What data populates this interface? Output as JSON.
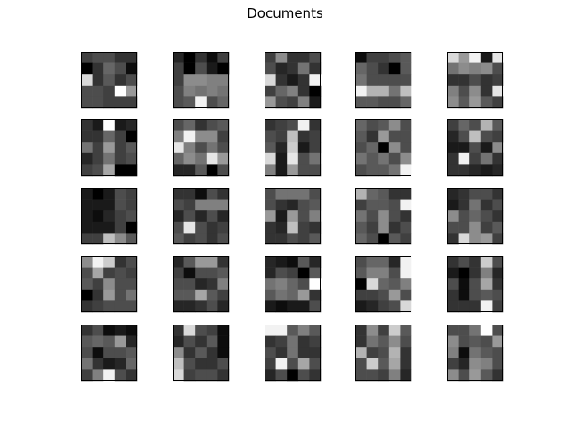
{
  "chart_data": {
    "type": "heatmap",
    "title": "Documents",
    "subplot_rows": 5,
    "subplot_cols": 5,
    "colormap": "gray",
    "value_range": [
      0,
      1
    ],
    "axes_visible": false,
    "frame_color": "#000000",
    "panels": [
      {
        "values": [
          [
            0.25,
            0.3,
            0.3,
            0.2,
            0.2
          ],
          [
            0.0,
            0.2,
            0.4,
            0.3,
            0.05
          ],
          [
            0.85,
            0.2,
            0.35,
            0.2,
            0.3
          ],
          [
            0.3,
            0.3,
            0.25,
            1.0,
            0.6
          ],
          [
            0.3,
            0.3,
            0.25,
            0.25,
            0.25
          ]
        ]
      },
      {
        "values": [
          [
            0.15,
            0.0,
            0.2,
            0.05,
            0.25
          ],
          [
            0.25,
            0.0,
            0.3,
            0.1,
            0.0
          ],
          [
            0.25,
            0.55,
            0.55,
            0.5,
            0.5
          ],
          [
            0.3,
            0.5,
            0.45,
            0.5,
            0.45
          ],
          [
            0.3,
            0.35,
            0.95,
            0.3,
            0.4
          ]
        ]
      },
      {
        "values": [
          [
            0.25,
            0.55,
            0.2,
            0.2,
            0.3
          ],
          [
            0.3,
            0.15,
            0.2,
            0.45,
            0.2
          ],
          [
            0.85,
            0.2,
            0.1,
            0.2,
            0.95
          ],
          [
            0.25,
            0.4,
            0.5,
            0.2,
            0.0
          ],
          [
            0.6,
            0.3,
            0.25,
            0.5,
            0.1
          ]
        ]
      },
      {
        "values": [
          [
            0.05,
            0.25,
            0.25,
            0.3,
            0.35
          ],
          [
            0.4,
            0.3,
            0.2,
            0.0,
            0.35
          ],
          [
            0.45,
            0.3,
            0.3,
            0.3,
            0.3
          ],
          [
            0.95,
            0.7,
            0.7,
            0.45,
            0.75
          ],
          [
            0.35,
            0.35,
            0.3,
            0.3,
            0.4
          ]
        ]
      },
      {
        "values": [
          [
            0.85,
            0.6,
            0.95,
            0.1,
            0.9
          ],
          [
            0.45,
            0.55,
            0.5,
            0.55,
            0.3
          ],
          [
            0.2,
            0.2,
            0.3,
            0.2,
            0.25
          ],
          [
            0.5,
            0.3,
            0.55,
            0.2,
            0.9
          ],
          [
            0.55,
            0.35,
            0.6,
            0.35,
            0.25
          ]
        ]
      },
      {
        "values": [
          [
            0.2,
            0.1,
            1.0,
            0.1,
            0.15
          ],
          [
            0.2,
            0.2,
            0.4,
            0.25,
            0.0
          ],
          [
            0.45,
            0.25,
            0.6,
            0.25,
            0.35
          ],
          [
            0.15,
            0.25,
            0.45,
            0.25,
            0.3
          ],
          [
            0.25,
            0.3,
            0.65,
            0.0,
            0.0
          ]
        ]
      },
      {
        "values": [
          [
            0.3,
            0.4,
            0.2,
            0.3,
            0.35
          ],
          [
            0.5,
            0.95,
            0.55,
            0.55,
            0.25
          ],
          [
            0.9,
            0.5,
            0.3,
            0.45,
            0.3
          ],
          [
            0.4,
            0.55,
            0.45,
            0.9,
            0.6
          ],
          [
            0.15,
            0.15,
            0.35,
            0.0,
            0.3
          ]
        ]
      },
      {
        "values": [
          [
            0.2,
            0.25,
            0.3,
            0.95,
            0.2
          ],
          [
            0.3,
            0.25,
            0.75,
            0.2,
            0.25
          ],
          [
            0.35,
            0.15,
            0.8,
            0.1,
            0.25
          ],
          [
            0.85,
            0.1,
            0.9,
            0.3,
            0.45
          ],
          [
            0.5,
            0.1,
            0.6,
            0.3,
            0.3
          ]
        ]
      },
      {
        "values": [
          [
            0.4,
            0.3,
            0.35,
            0.55,
            0.3
          ],
          [
            0.35,
            0.2,
            0.6,
            0.3,
            0.3
          ],
          [
            0.3,
            0.4,
            0.0,
            0.55,
            0.3
          ],
          [
            0.45,
            0.35,
            0.45,
            0.3,
            0.55
          ],
          [
            0.3,
            0.35,
            0.35,
            0.45,
            0.95
          ]
        ]
      },
      {
        "values": [
          [
            0.25,
            0.4,
            0.3,
            0.7,
            0.35
          ],
          [
            0.15,
            0.3,
            0.75,
            0.3,
            0.25
          ],
          [
            0.1,
            0.1,
            0.3,
            0.1,
            0.55
          ],
          [
            0.2,
            0.95,
            0.25,
            0.45,
            0.2
          ],
          [
            0.2,
            0.2,
            0.15,
            0.1,
            0.15
          ]
        ]
      },
      {
        "values": [
          [
            0.1,
            0.0,
            0.1,
            0.3,
            0.25
          ],
          [
            0.1,
            0.1,
            0.1,
            0.3,
            0.25
          ],
          [
            0.1,
            0.05,
            0.15,
            0.25,
            0.3
          ],
          [
            0.1,
            0.1,
            0.1,
            0.25,
            0.0
          ],
          [
            0.25,
            0.25,
            0.75,
            0.55,
            0.35
          ]
        ]
      },
      {
        "values": [
          [
            0.2,
            0.2,
            0.05,
            0.3,
            0.2
          ],
          [
            0.3,
            0.25,
            0.5,
            0.5,
            0.5
          ],
          [
            0.15,
            0.3,
            0.15,
            0.3,
            0.15
          ],
          [
            0.3,
            0.9,
            0.3,
            0.2,
            0.25
          ],
          [
            0.35,
            0.25,
            0.3,
            0.2,
            0.3
          ]
        ]
      },
      {
        "values": [
          [
            0.3,
            0.45,
            0.45,
            0.45,
            0.3
          ],
          [
            0.3,
            0.2,
            0.15,
            0.3,
            0.35
          ],
          [
            0.6,
            0.1,
            0.6,
            0.3,
            0.5
          ],
          [
            0.2,
            0.15,
            0.75,
            0.25,
            0.2
          ],
          [
            0.2,
            0.2,
            0.3,
            0.25,
            0.35
          ]
        ]
      },
      {
        "values": [
          [
            0.7,
            0.4,
            0.35,
            0.2,
            0.2
          ],
          [
            0.25,
            0.35,
            0.35,
            0.3,
            0.95
          ],
          [
            0.45,
            0.3,
            0.55,
            0.3,
            0.2
          ],
          [
            0.35,
            0.25,
            0.55,
            0.2,
            0.3
          ],
          [
            0.4,
            0.3,
            0.0,
            0.35,
            0.25
          ]
        ]
      },
      {
        "values": [
          [
            0.15,
            0.2,
            0.3,
            0.3,
            0.2
          ],
          [
            0.1,
            0.2,
            0.45,
            0.2,
            0.3
          ],
          [
            0.55,
            0.3,
            0.4,
            0.3,
            0.2
          ],
          [
            0.3,
            0.3,
            0.55,
            0.25,
            0.35
          ],
          [
            0.2,
            0.85,
            0.55,
            0.6,
            0.25
          ]
        ]
      },
      {
        "values": [
          [
            0.55,
            0.95,
            0.8,
            0.2,
            0.3
          ],
          [
            0.3,
            0.65,
            0.25,
            0.3,
            0.25
          ],
          [
            0.35,
            0.25,
            0.55,
            0.3,
            0.3
          ],
          [
            0.0,
            0.2,
            0.6,
            0.3,
            0.45
          ],
          [
            0.2,
            0.25,
            0.3,
            0.3,
            0.3
          ]
        ]
      },
      {
        "values": [
          [
            0.15,
            0.35,
            0.6,
            0.6,
            0.2
          ],
          [
            0.25,
            0.05,
            0.3,
            0.3,
            0.35
          ],
          [
            0.3,
            0.3,
            0.15,
            0.2,
            0.5
          ],
          [
            0.35,
            0.35,
            0.65,
            0.35,
            0.25
          ],
          [
            0.15,
            0.15,
            0.2,
            0.3,
            0.15
          ]
        ]
      },
      {
        "values": [
          [
            0.15,
            0.1,
            0.05,
            0.35,
            0.15
          ],
          [
            0.15,
            0.3,
            0.25,
            0.0,
            0.35
          ],
          [
            0.45,
            0.5,
            0.4,
            0.3,
            1.0
          ],
          [
            0.35,
            0.45,
            0.4,
            0.6,
            0.2
          ],
          [
            0.1,
            0.05,
            0.1,
            0.1,
            0.3
          ]
        ]
      },
      {
        "values": [
          [
            0.3,
            0.4,
            0.4,
            0.15,
            0.95
          ],
          [
            0.35,
            0.5,
            0.5,
            0.3,
            0.95
          ],
          [
            0.0,
            0.85,
            0.4,
            0.35,
            0.5
          ],
          [
            0.25,
            0.25,
            0.3,
            0.6,
            0.3
          ],
          [
            0.1,
            0.15,
            0.25,
            0.3,
            0.85
          ]
        ]
      },
      {
        "values": [
          [
            0.2,
            0.3,
            0.2,
            0.8,
            0.3
          ],
          [
            0.1,
            0.0,
            0.2,
            0.5,
            0.15
          ],
          [
            0.3,
            0.05,
            0.3,
            0.65,
            0.2
          ],
          [
            0.2,
            0.05,
            0.3,
            0.35,
            0.3
          ],
          [
            0.2,
            0.2,
            0.2,
            0.95,
            0.25
          ]
        ]
      },
      {
        "values": [
          [
            0.2,
            0.3,
            0.05,
            0.1,
            0.05
          ],
          [
            0.35,
            0.4,
            0.35,
            0.6,
            0.15
          ],
          [
            0.3,
            0.05,
            0.3,
            0.3,
            0.35
          ],
          [
            0.45,
            0.2,
            0.1,
            0.15,
            0.4
          ],
          [
            0.25,
            0.5,
            0.95,
            0.3,
            0.2
          ]
        ]
      },
      {
        "values": [
          [
            0.2,
            0.85,
            0.3,
            0.25,
            0.05
          ],
          [
            0.15,
            0.3,
            0.2,
            0.35,
            0.05
          ],
          [
            0.55,
            0.2,
            0.35,
            0.2,
            0.05
          ],
          [
            0.75,
            0.3,
            0.2,
            0.2,
            0.3
          ],
          [
            0.85,
            0.25,
            0.3,
            0.3,
            0.2
          ]
        ]
      },
      {
        "values": [
          [
            0.95,
            0.95,
            0.35,
            0.5,
            0.35
          ],
          [
            0.2,
            0.25,
            0.45,
            0.2,
            0.25
          ],
          [
            0.3,
            0.2,
            0.45,
            0.2,
            0.2
          ],
          [
            0.25,
            0.95,
            0.3,
            0.65,
            0.3
          ],
          [
            0.15,
            0.3,
            0.0,
            0.3,
            0.2
          ]
        ]
      },
      {
        "values": [
          [
            0.2,
            0.55,
            0.25,
            0.8,
            0.35
          ],
          [
            0.2,
            0.45,
            0.35,
            0.55,
            0.3
          ],
          [
            0.7,
            0.25,
            0.3,
            0.7,
            0.2
          ],
          [
            0.3,
            0.8,
            0.35,
            0.65,
            0.2
          ],
          [
            0.3,
            0.3,
            0.25,
            0.5,
            0.15
          ]
        ]
      },
      {
        "values": [
          [
            0.3,
            0.3,
            0.45,
            1.0,
            0.3
          ],
          [
            0.55,
            0.3,
            0.35,
            0.3,
            0.6
          ],
          [
            0.5,
            0.05,
            0.45,
            0.35,
            0.3
          ],
          [
            0.25,
            0.15,
            0.55,
            0.5,
            0.3
          ],
          [
            0.55,
            0.3,
            0.6,
            0.35,
            0.2
          ]
        ]
      }
    ]
  }
}
